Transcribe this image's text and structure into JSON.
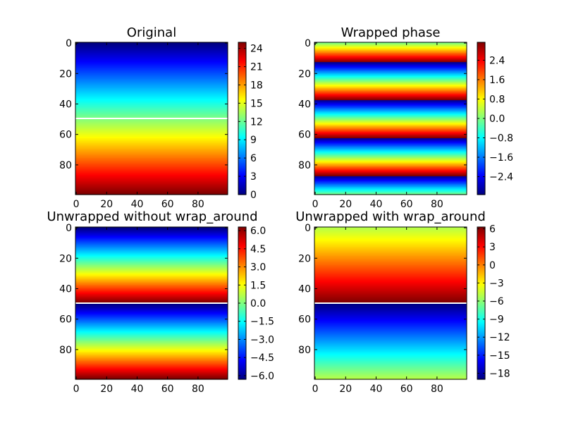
{
  "chart_data": [
    {
      "type": "heatmap",
      "title": "Original",
      "colormap": "jet",
      "image_size": [
        100,
        100
      ],
      "xticks": [
        "0",
        "20",
        "40",
        "60",
        "80"
      ],
      "yticks": [
        "0",
        "20",
        "40",
        "60",
        "80"
      ],
      "row_profile": {
        "kind": "linear",
        "from": 0,
        "to": 25
      },
      "white_line_row": 50,
      "colorbar": {
        "vmin": 0,
        "vmax": 25,
        "ticks": [
          "0",
          "3",
          "6",
          "9",
          "12",
          "15",
          "18",
          "21",
          "24"
        ],
        "values": [
          0,
          3,
          6,
          9,
          12,
          15,
          18,
          21,
          24
        ]
      }
    },
    {
      "type": "heatmap",
      "title": "Wrapped phase",
      "colormap": "jet",
      "image_size": [
        100,
        100
      ],
      "xticks": [
        "0",
        "20",
        "40",
        "60",
        "80"
      ],
      "yticks": [
        "0",
        "20",
        "40",
        "60",
        "80"
      ],
      "row_profile": {
        "kind": "wrapped",
        "from": 0,
        "to": 25
      },
      "colorbar": {
        "vmin": -3.14,
        "vmax": 3.14,
        "ticks": [
          "−2.4",
          "−1.6",
          "−0.8",
          "0.0",
          "0.8",
          "1.6",
          "2.4"
        ],
        "values": [
          -2.4,
          -1.6,
          -0.8,
          0.0,
          0.8,
          1.6,
          2.4
        ]
      }
    },
    {
      "type": "heatmap",
      "title": "Unwrapped without wrap_around",
      "colormap": "jet",
      "image_size": [
        100,
        100
      ],
      "xticks": [
        "0",
        "20",
        "40",
        "60",
        "80"
      ],
      "yticks": [
        "0",
        "20",
        "40",
        "60",
        "80"
      ],
      "row_profile": {
        "kind": "two_ramps",
        "split_row": 50,
        "top": [
          -6.3,
          6.3
        ],
        "bottom": [
          -6.3,
          6.3
        ]
      },
      "white_line_row": 50,
      "colorbar": {
        "vmin": -6.3,
        "vmax": 6.3,
        "ticks": [
          "−6.0",
          "−4.5",
          "−3.0",
          "−1.5",
          "0.0",
          "1.5",
          "3.0",
          "4.5",
          "6.0"
        ],
        "values": [
          -6,
          -4.5,
          -3,
          -1.5,
          0,
          1.5,
          3,
          4.5,
          6
        ]
      }
    },
    {
      "type": "heatmap",
      "title": "Unwrapped with wrap_around",
      "colormap": "jet",
      "image_size": [
        100,
        100
      ],
      "xticks": [
        "0",
        "20",
        "40",
        "60",
        "80"
      ],
      "yticks": [
        "0",
        "20",
        "40",
        "60",
        "80"
      ],
      "row_profile": {
        "kind": "two_ramps",
        "split_row": 50,
        "top": [
          -5,
          6.3
        ],
        "bottom": [
          -19,
          -5
        ]
      },
      "white_line_row": 50,
      "colorbar": {
        "vmin": -19,
        "vmax": 6.3,
        "ticks": [
          "−18",
          "−15",
          "−12",
          "−9",
          "−6",
          "−3",
          "0",
          "3",
          "6"
        ],
        "values": [
          -18,
          -15,
          -12,
          -9,
          -6,
          -3,
          0,
          3,
          6
        ]
      }
    }
  ]
}
